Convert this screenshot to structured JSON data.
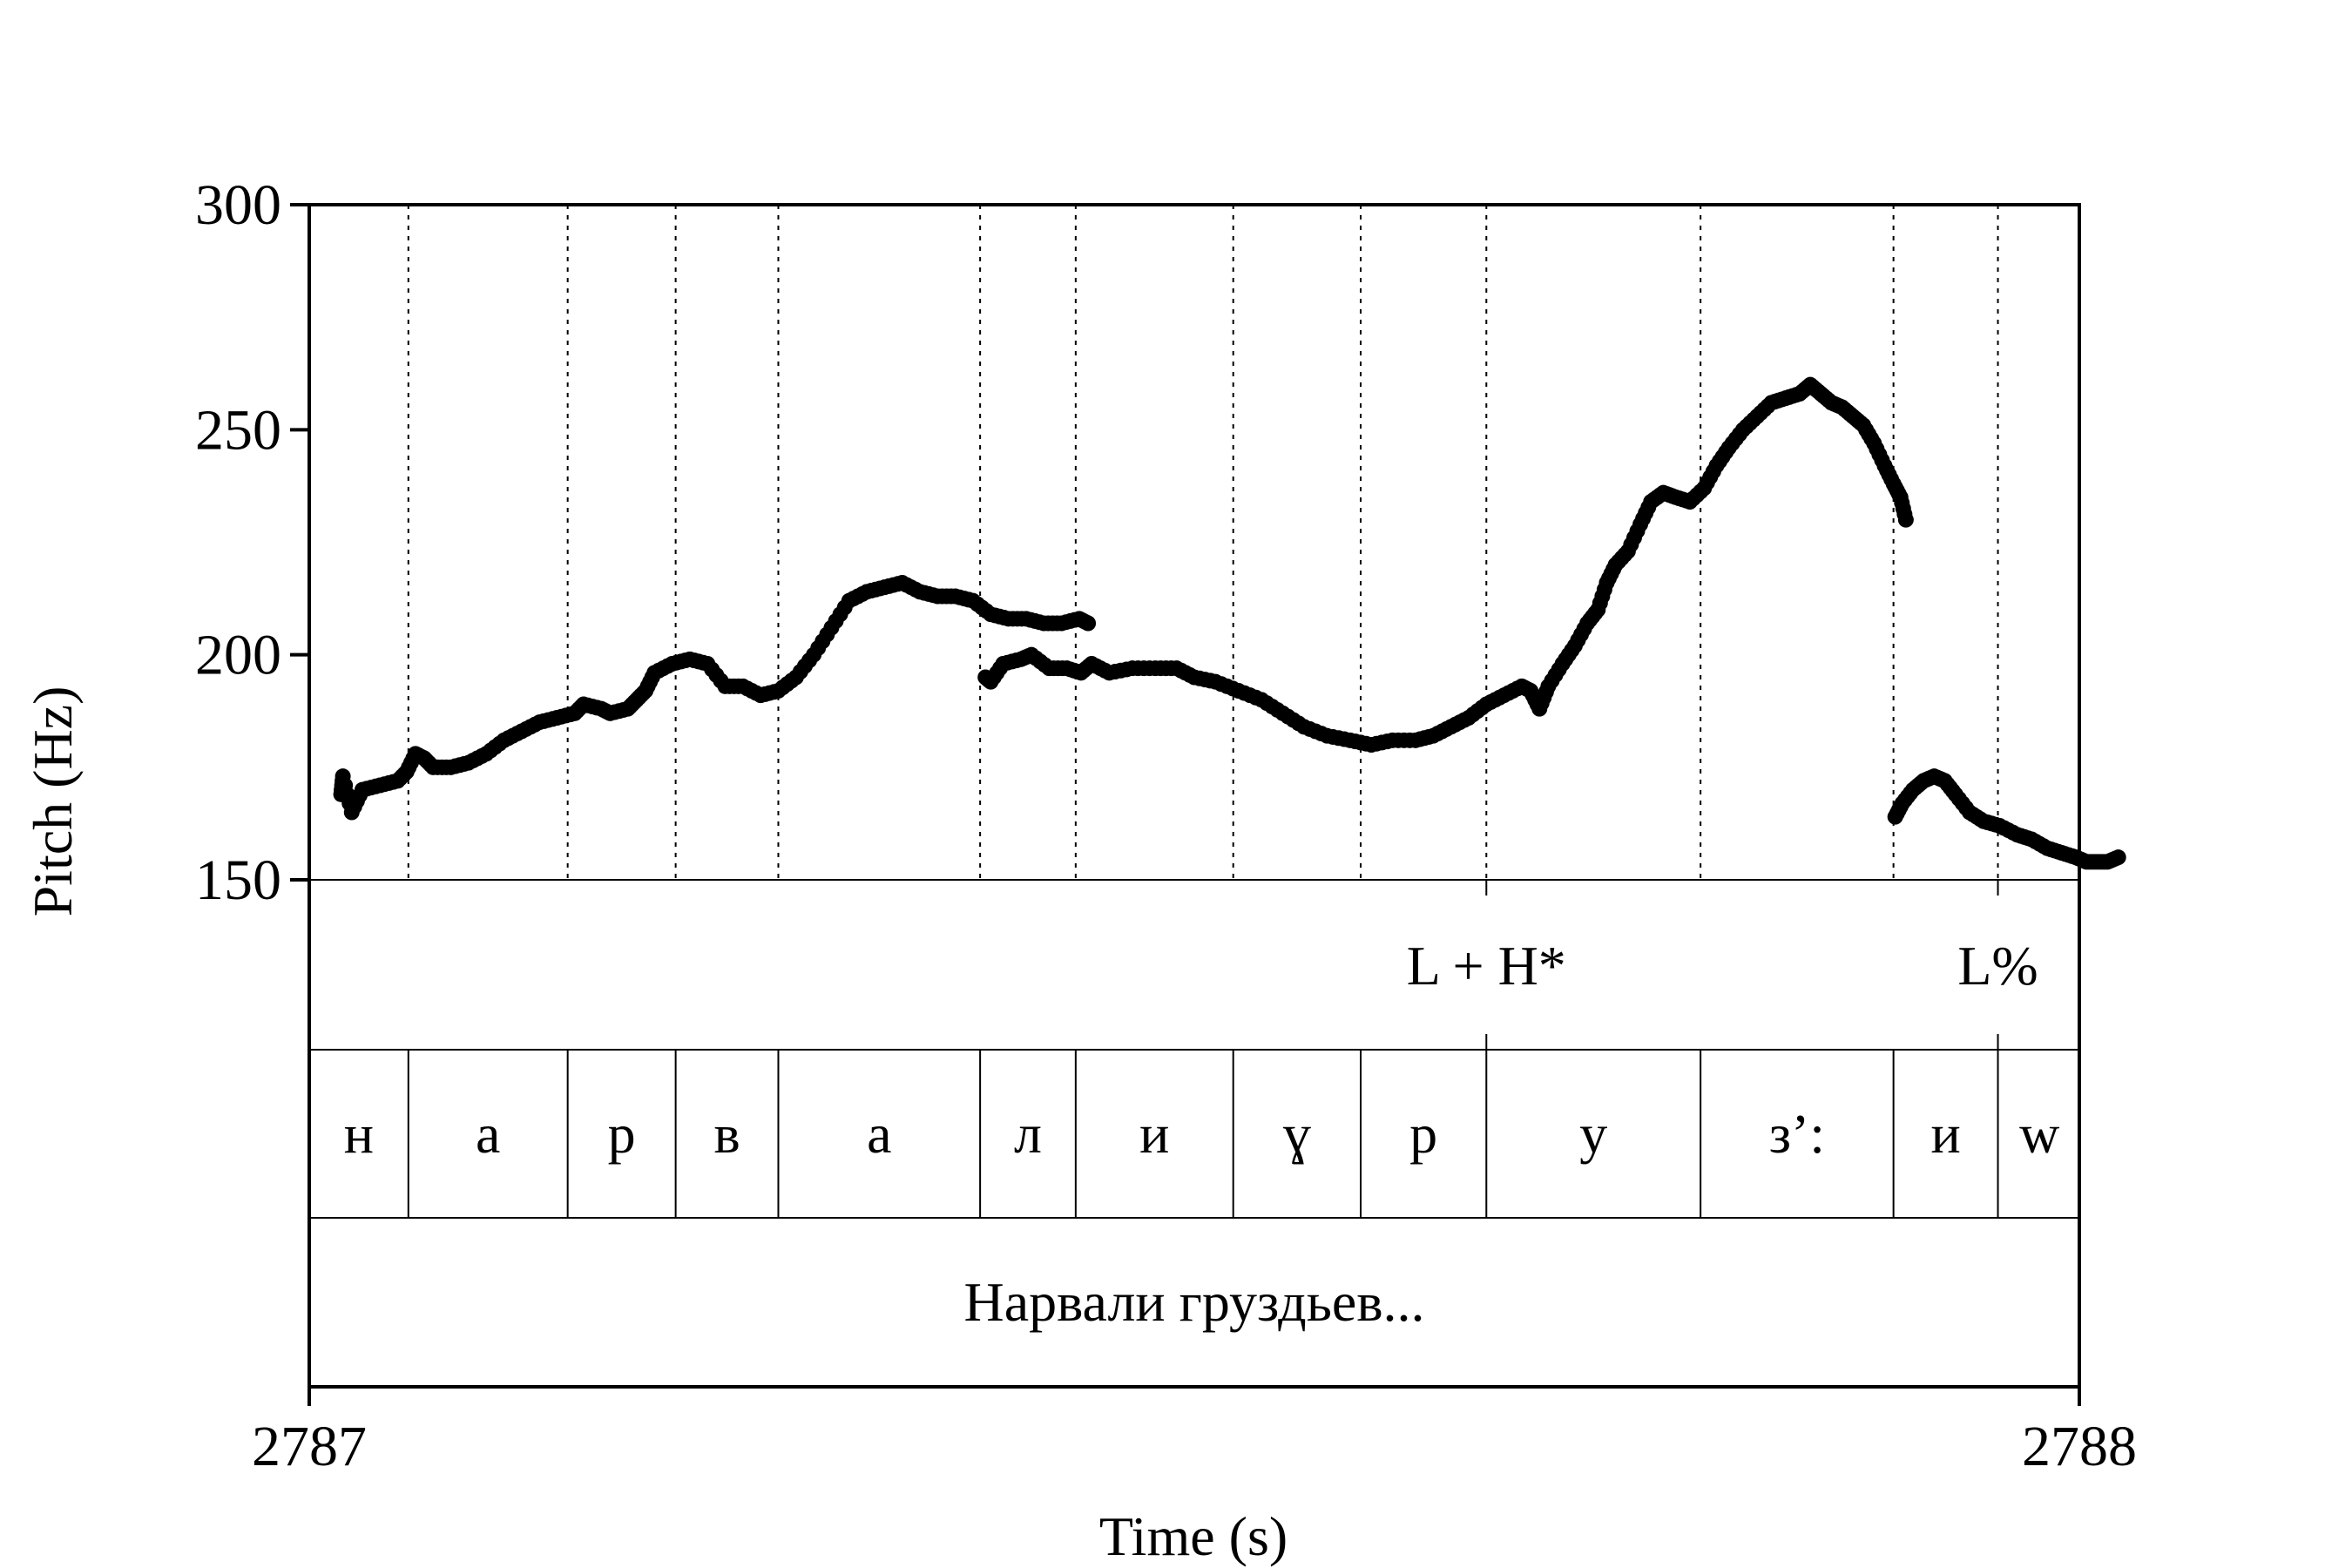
{
  "chart_data": {
    "type": "line",
    "title": "",
    "xlabel": "Time (s)",
    "ylabel": "Pitch (Hz)",
    "xlim": [
      2787,
      2788
    ],
    "ylim": [
      150,
      300
    ],
    "x_tick_labels": [
      "2787",
      "2788"
    ],
    "y_ticks": [
      150,
      200,
      250,
      300
    ],
    "y_tick_labels": [
      "150",
      "200",
      "250",
      "300"
    ],
    "pitch_segments": [
      [
        [
          2787.018,
          169
        ],
        [
          2787.019,
          173
        ],
        [
          2787.024,
          165
        ],
        [
          2787.03,
          170
        ],
        [
          2787.04,
          171
        ],
        [
          2787.05,
          172
        ],
        [
          2787.055,
          174
        ],
        [
          2787.06,
          178
        ],
        [
          2787.065,
          177
        ],
        [
          2787.07,
          175
        ],
        [
          2787.08,
          175
        ],
        [
          2787.09,
          176
        ],
        [
          2787.1,
          178
        ],
        [
          2787.11,
          181
        ],
        [
          2787.12,
          183
        ],
        [
          2787.13,
          185
        ],
        [
          2787.14,
          186
        ],
        [
          2787.15,
          187
        ],
        [
          2787.155,
          189
        ],
        [
          2787.165,
          188
        ],
        [
          2787.17,
          187
        ],
        [
          2787.18,
          188
        ],
        [
          2787.185,
          190
        ],
        [
          2787.19,
          192
        ],
        [
          2787.195,
          196
        ],
        [
          2787.205,
          198
        ],
        [
          2787.215,
          199
        ],
        [
          2787.225,
          198
        ],
        [
          2787.235,
          193
        ],
        [
          2787.245,
          193
        ],
        [
          2787.255,
          191
        ],
        [
          2787.265,
          192
        ],
        [
          2787.275,
          195
        ],
        [
          2787.285,
          200
        ],
        [
          2787.295,
          206
        ],
        [
          2787.305,
          212
        ],
        [
          2787.315,
          214
        ],
        [
          2787.325,
          215
        ],
        [
          2787.335,
          216
        ],
        [
          2787.345,
          214
        ],
        [
          2787.355,
          213
        ],
        [
          2787.365,
          213
        ],
        [
          2787.375,
          212
        ],
        [
          2787.385,
          209
        ],
        [
          2787.395,
          208
        ],
        [
          2787.405,
          208
        ],
        [
          2787.415,
          207
        ],
        [
          2787.425,
          207
        ],
        [
          2787.435,
          208
        ],
        [
          2787.44,
          207
        ]
      ],
      [
        [
          2787.382,
          195
        ],
        [
          2787.385,
          194
        ],
        [
          2787.392,
          198
        ],
        [
          2787.402,
          199
        ],
        [
          2787.408,
          200
        ],
        [
          2787.418,
          197
        ],
        [
          2787.428,
          197
        ],
        [
          2787.436,
          196
        ],
        [
          2787.442,
          198
        ],
        [
          2787.452,
          196
        ],
        [
          2787.465,
          197
        ],
        [
          2787.478,
          197
        ],
        [
          2787.49,
          197
        ],
        [
          2787.5,
          195
        ],
        [
          2787.512,
          194
        ],
        [
          2787.525,
          192
        ],
        [
          2787.538,
          190
        ],
        [
          2787.55,
          187
        ],
        [
          2787.562,
          184
        ],
        [
          2787.575,
          182
        ],
        [
          2787.588,
          181
        ],
        [
          2787.6,
          180
        ],
        [
          2787.612,
          181
        ],
        [
          2787.625,
          181
        ],
        [
          2787.635,
          182
        ],
        [
          2787.645,
          184
        ],
        [
          2787.655,
          186
        ],
        [
          2787.665,
          189
        ],
        [
          2787.675,
          191
        ],
        [
          2787.685,
          193
        ],
        [
          2787.69,
          192
        ],
        [
          2787.695,
          188
        ],
        [
          2787.7,
          193
        ],
        [
          2787.708,
          198
        ],
        [
          2787.715,
          202
        ],
        [
          2787.722,
          207
        ],
        [
          2787.728,
          210
        ],
        [
          2787.733,
          216
        ],
        [
          2787.738,
          220
        ],
        [
          2787.745,
          223
        ],
        [
          2787.752,
          229
        ],
        [
          2787.758,
          234
        ],
        [
          2787.765,
          236
        ],
        [
          2787.772,
          235
        ],
        [
          2787.78,
          234
        ],
        [
          2787.788,
          237
        ],
        [
          2787.795,
          242
        ],
        [
          2787.802,
          246
        ],
        [
          2787.81,
          250
        ],
        [
          2787.818,
          253
        ],
        [
          2787.826,
          256
        ],
        [
          2787.834,
          257
        ],
        [
          2787.842,
          258
        ],
        [
          2787.848,
          260
        ],
        [
          2787.854,
          258
        ],
        [
          2787.86,
          256
        ],
        [
          2787.866,
          255
        ],
        [
          2787.872,
          253
        ],
        [
          2787.878,
          251
        ],
        [
          2787.884,
          247
        ],
        [
          2787.89,
          242
        ],
        [
          2787.895,
          238
        ],
        [
          2787.899,
          235
        ],
        [
          2787.902,
          230
        ]
      ],
      [
        [
          2787.896,
          164
        ],
        [
          2787.9,
          167
        ],
        [
          2787.906,
          170
        ],
        [
          2787.912,
          172
        ],
        [
          2787.918,
          173
        ],
        [
          2787.924,
          172
        ],
        [
          2787.93,
          169
        ],
        [
          2787.938,
          165
        ],
        [
          2787.946,
          163
        ],
        [
          2787.955,
          162
        ],
        [
          2787.965,
          160
        ],
        [
          2787.973,
          159
        ],
        [
          2787.982,
          157
        ],
        [
          2787.99,
          156
        ],
        [
          2787.998,
          155
        ],
        [
          2788.004,
          154
        ],
        [
          2788.01,
          154
        ],
        [
          2788.016,
          154
        ],
        [
          2788.022,
          155
        ]
      ]
    ],
    "boundaries_x": [
      2787.056,
      2787.146,
      2787.207,
      2787.265,
      2787.379,
      2787.433,
      2787.522,
      2787.594,
      2787.665,
      2787.786,
      2787.895,
      2787.954
    ],
    "interval_end_x": 2788.001,
    "tone_tier": [
      {
        "label": "L + H*",
        "x": 2787.665
      },
      {
        "label": "L%",
        "x": 2787.954
      }
    ],
    "segment_tier": [
      "н",
      "а",
      "р",
      "в",
      "а",
      "л",
      "и",
      "ɣ",
      "р",
      "у",
      "з’:",
      "и",
      "w"
    ],
    "phrase_tier": "Нарвали груздьев..."
  }
}
